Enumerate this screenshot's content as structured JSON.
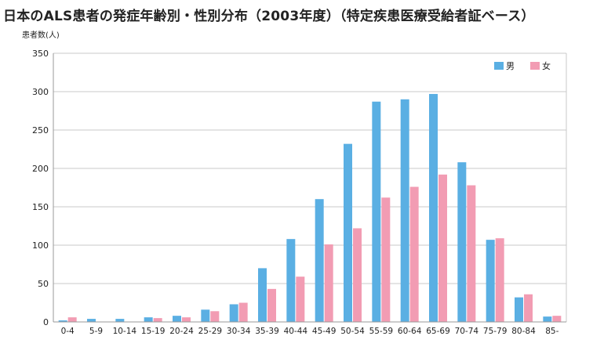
{
  "title": "日本のALS患者の発症年齢別・性別分布（2003年度）（特定疾患医療受給者証ベース）",
  "chart_data": {
    "type": "bar",
    "ylabel": "患者数(人)",
    "xlabel": "",
    "ylim": [
      0,
      350
    ],
    "yticks": [
      0,
      50,
      100,
      150,
      200,
      250,
      300,
      350
    ],
    "grid": true,
    "legend_position": "top-right",
    "categories": [
      "0-4",
      "5-9",
      "10-14",
      "15-19",
      "20-24",
      "25-29",
      "30-34",
      "35-39",
      "40-44",
      "45-49",
      "50-54",
      "55-59",
      "60-64",
      "65-69",
      "70-74",
      "75-79",
      "80-84",
      "85-"
    ],
    "series": [
      {
        "name": "男",
        "color": "#5aafe3",
        "values": [
          2,
          4,
          4,
          6,
          8,
          16,
          23,
          70,
          108,
          160,
          232,
          287,
          290,
          297,
          208,
          107,
          32,
          7
        ]
      },
      {
        "name": "女",
        "color": "#f29cb3",
        "values": [
          6,
          0,
          0,
          5,
          6,
          14,
          25,
          43,
          59,
          101,
          122,
          162,
          176,
          192,
          178,
          109,
          36,
          8
        ]
      }
    ]
  }
}
